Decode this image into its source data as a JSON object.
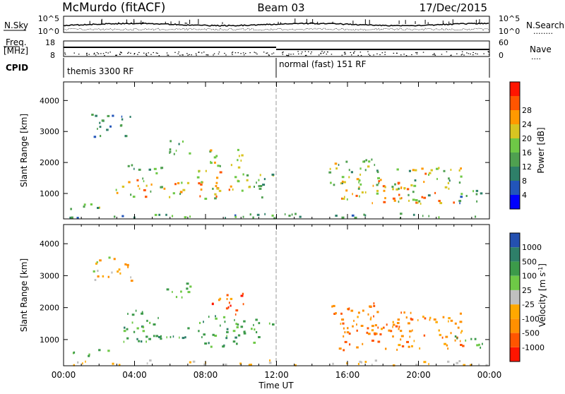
{
  "header": {
    "station": "McMurdo (fitACF)",
    "beam": "Beam 03",
    "date": "17/Dec/2015"
  },
  "summary_panels": {
    "nsky": {
      "label": "N.Sky",
      "left_ticks": [
        "10^5",
        "10^0"
      ],
      "right_label": "N.Search",
      "right_ticks": [
        "10^5",
        "10^0"
      ]
    },
    "freq": {
      "label_line1": "Freq.",
      "label_line2": "[MHz]",
      "left_ticks": [
        "18",
        "8"
      ],
      "right_label": "Nave",
      "right_ticks": [
        "60",
        "0"
      ]
    },
    "cpid": {
      "label": "CPID",
      "segments": [
        "themis 3300 RF",
        "normal (fast) 151 RF"
      ]
    }
  },
  "colors": {
    "power_scale": [
      "#0000ff",
      "#2255ba",
      "#2e7f69",
      "#4fa050",
      "#6ec846",
      "#d8c421",
      "#ff9900",
      "#ff5500",
      "#ff1500"
    ],
    "velocity_scale": [
      "#ff1500",
      "#ff5500",
      "#ff9000",
      "#ffa800",
      "#c0c0c0",
      "#6ec846",
      "#3c9a4a",
      "#2e7f69",
      "#2450b0"
    ]
  },
  "chart_data": [
    {
      "type": "heatmap",
      "title": "",
      "xlabel": "",
      "ylabel": "Slant Range [km]",
      "x_ticks": [
        "00:00",
        "04:00",
        "08:00",
        "12:00",
        "16:00",
        "20:00",
        "00:00"
      ],
      "xlim_hours": [
        0,
        24
      ],
      "y_ticks": [
        "1000",
        "2000",
        "3000",
        "4000"
      ],
      "ylim_km": [
        180,
        4600
      ],
      "colorbar": {
        "label": "Power [dB]",
        "ticks": [
          "4",
          "8",
          "12",
          "16",
          "20",
          "24",
          "28"
        ],
        "range": [
          0,
          32
        ]
      },
      "echo_regions": [
        {
          "t0": 0.2,
          "t1": 23.8,
          "r0": 200,
          "r1": 380,
          "v0": 4,
          "v1": 16
        },
        {
          "t0": 0.3,
          "t1": 2.6,
          "r0": 500,
          "r1": 750,
          "v0": 8,
          "v1": 20
        },
        {
          "t0": 2.8,
          "t1": 7.0,
          "r0": 900,
          "r1": 1500,
          "v0": 12,
          "v1": 26
        },
        {
          "t0": 3.5,
          "t1": 5.5,
          "r0": 1500,
          "r1": 1950,
          "v0": 8,
          "v1": 16
        },
        {
          "t0": 5.5,
          "t1": 7.2,
          "r0": 2300,
          "r1": 2800,
          "v0": 10,
          "v1": 18
        },
        {
          "t0": 7.5,
          "t1": 9.8,
          "r0": 800,
          "r1": 1800,
          "v0": 12,
          "v1": 28
        },
        {
          "t0": 8.2,
          "t1": 10.2,
          "r0": 1800,
          "r1": 2500,
          "v0": 12,
          "v1": 22
        },
        {
          "t0": 9.5,
          "t1": 11.8,
          "r0": 900,
          "r1": 1700,
          "v0": 8,
          "v1": 20
        },
        {
          "t0": 1.5,
          "t1": 3.8,
          "r0": 2800,
          "r1": 3600,
          "v0": 6,
          "v1": 14
        },
        {
          "t0": 14.8,
          "t1": 18.0,
          "r0": 1300,
          "r1": 2200,
          "v0": 10,
          "v1": 22
        },
        {
          "t0": 15.5,
          "t1": 19.5,
          "r0": 700,
          "r1": 1500,
          "v0": 12,
          "v1": 28
        },
        {
          "t0": 18.5,
          "t1": 22.5,
          "r0": 700,
          "r1": 1900,
          "v0": 10,
          "v1": 28
        },
        {
          "t0": 22.0,
          "t1": 23.6,
          "r0": 700,
          "r1": 1200,
          "v0": 6,
          "v1": 16
        }
      ]
    },
    {
      "type": "heatmap",
      "title": "",
      "xlabel": "Time UT",
      "ylabel": "Slant Range [km]",
      "x_ticks": [
        "00:00",
        "04:00",
        "08:00",
        "12:00",
        "16:00",
        "20:00",
        "00:00"
      ],
      "xlim_hours": [
        0,
        24
      ],
      "y_ticks": [
        "1000",
        "2000",
        "3000",
        "4000"
      ],
      "ylim_km": [
        180,
        4600
      ],
      "colorbar": {
        "label": "Velocity [m s^-1]",
        "ticks": [
          "1000",
          "500",
          "100",
          "25",
          "-25",
          "-100",
          "-500",
          "-1000"
        ]
      },
      "echo_regions": [
        {
          "t0": 0.2,
          "t1": 23.8,
          "r0": 200,
          "r1": 380,
          "v0": 3,
          "v1": 4
        },
        {
          "t0": 0.3,
          "t1": 2.6,
          "r0": 500,
          "r1": 750,
          "v0": 5,
          "v1": 6
        },
        {
          "t0": 2.8,
          "t1": 7.0,
          "r0": 900,
          "r1": 1500,
          "v0": 5,
          "v1": 7
        },
        {
          "t0": 3.5,
          "t1": 5.5,
          "r0": 1500,
          "r1": 1950,
          "v0": 5,
          "v1": 6
        },
        {
          "t0": 5.5,
          "t1": 7.2,
          "r0": 2300,
          "r1": 2800,
          "v0": 5,
          "v1": 6
        },
        {
          "t0": 7.5,
          "t1": 9.8,
          "r0": 800,
          "r1": 1800,
          "v0": 5,
          "v1": 7
        },
        {
          "t0": 8.2,
          "t1": 10.2,
          "r0": 1800,
          "r1": 2500,
          "v0": 0,
          "v1": 3
        },
        {
          "t0": 9.5,
          "t1": 11.8,
          "r0": 900,
          "r1": 1700,
          "v0": 5,
          "v1": 6
        },
        {
          "t0": 1.5,
          "t1": 3.8,
          "r0": 2800,
          "r1": 3600,
          "v0": 2,
          "v1": 5
        },
        {
          "t0": 14.8,
          "t1": 18.0,
          "r0": 1300,
          "r1": 2200,
          "v0": 1,
          "v1": 3
        },
        {
          "t0": 15.5,
          "t1": 19.5,
          "r0": 700,
          "r1": 1500,
          "v0": 1,
          "v1": 2
        },
        {
          "t0": 18.5,
          "t1": 22.5,
          "r0": 700,
          "r1": 1900,
          "v0": 1,
          "v1": 3
        },
        {
          "t0": 22.0,
          "t1": 23.6,
          "r0": 700,
          "r1": 1200,
          "v0": 4,
          "v1": 6
        }
      ]
    }
  ]
}
